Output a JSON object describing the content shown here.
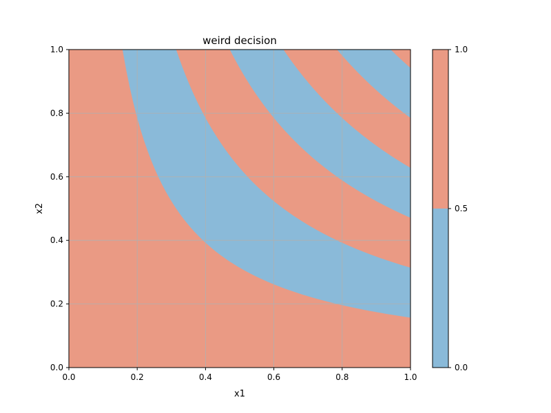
{
  "chart_data": {
    "type": "heatmap",
    "title": "weird decision",
    "xlabel": "x1",
    "ylabel": "x2",
    "xlim": [
      0,
      1
    ],
    "ylim": [
      0,
      1
    ],
    "xticks": [
      "0.0",
      "0.2",
      "0.4",
      "0.6",
      "0.8",
      "1.0"
    ],
    "yticks": [
      "0.0",
      "0.2",
      "0.4",
      "0.6",
      "0.8",
      "1.0"
    ],
    "grid": true,
    "decision_function": {
      "class_1_when": "floor(x1 * x2 / 0.157) is even",
      "boundaries_x1_times_x2": [
        0.157,
        0.314,
        0.471,
        0.628,
        0.785,
        0.942
      ],
      "region_colors": {
        "0": "#8abad9",
        "1": "#ea9a84"
      }
    },
    "colorbar": {
      "ticks": [
        "0.0",
        "0.5",
        "1.0"
      ],
      "segments": [
        {
          "from": 0.0,
          "to": 0.5,
          "color": "#8abad9"
        },
        {
          "from": 0.5,
          "to": 1.0,
          "color": "#ea9a84"
        }
      ]
    },
    "colors": {
      "grid": "#b0b0b0",
      "axis": "#000000"
    }
  }
}
